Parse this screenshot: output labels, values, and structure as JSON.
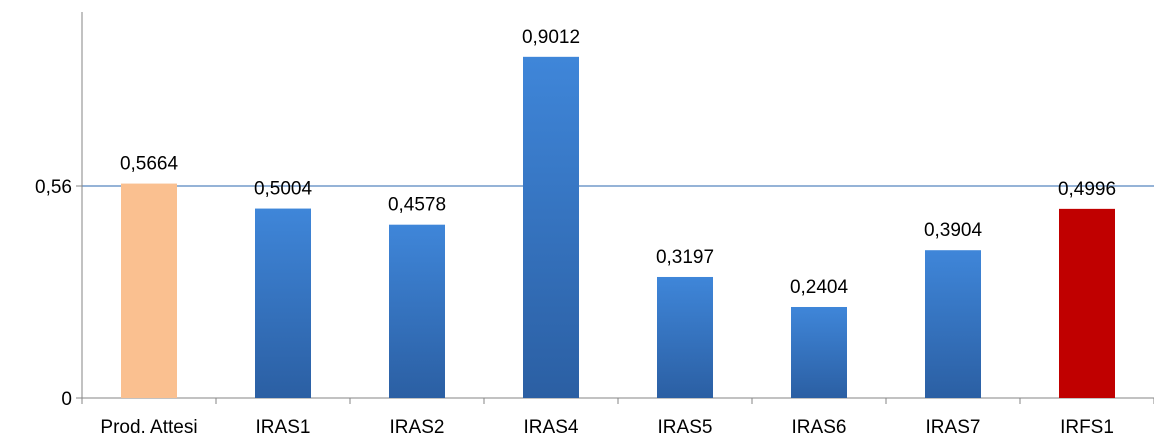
{
  "chart_data": {
    "type": "bar",
    "categories": [
      "Prod. Attesi",
      "IRAS1",
      "IRAS2",
      "IRAS4",
      "IRAS5",
      "IRAS6",
      "IRAS7",
      "IRFS1"
    ],
    "values": [
      0.5664,
      0.5004,
      0.4578,
      0.9012,
      0.3197,
      0.2404,
      0.3904,
      0.4996
    ],
    "data_labels": [
      "0,5664",
      "0,5004",
      "0,4578",
      "0,9012",
      "0,3197",
      "0,2404",
      "0,3904",
      "0,4996"
    ],
    "bar_colors": [
      "#FAC090",
      "#3A78C8",
      "#3A78C8",
      "#3A78C8",
      "#3A78C8",
      "#3A78C8",
      "#3A78C8",
      "#C00000"
    ],
    "y_ticks": [
      {
        "value": 0,
        "label": "0"
      },
      {
        "value": 0.56,
        "label": "0,56"
      }
    ],
    "reference_line": {
      "value": 0.56,
      "color": "#95B3D7"
    },
    "ylim": [
      0,
      1.0
    ],
    "grid": false,
    "title": "",
    "xlabel": "",
    "ylabel": ""
  }
}
